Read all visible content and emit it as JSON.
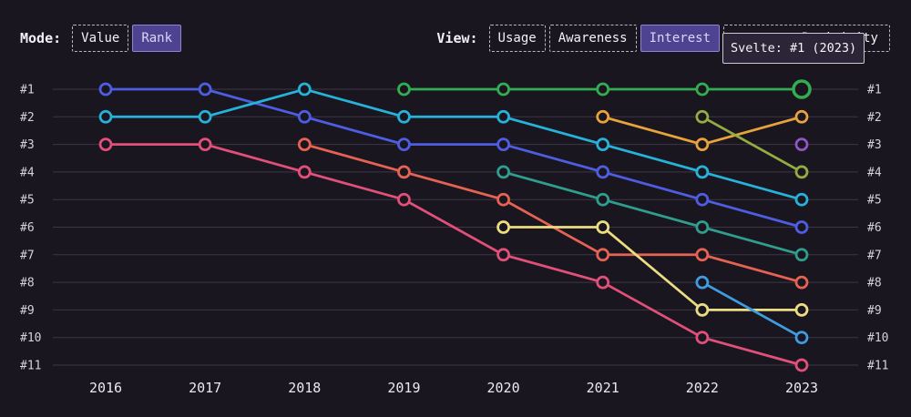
{
  "colors": {
    "background": "#1a1620",
    "grid": "#3d3745",
    "text": "#f3f0f7",
    "muted": "#d6d0de",
    "selected_bg": "#4d4390"
  },
  "toolbar": {
    "mode_label": "Mode:",
    "mode_options": [
      {
        "label": "Value",
        "selected": false
      },
      {
        "label": "Rank",
        "selected": true
      }
    ],
    "view_label": "View:",
    "view_options": [
      {
        "label": "Usage",
        "selected": false
      },
      {
        "label": "Awareness",
        "selected": false
      },
      {
        "label": "Interest",
        "selected": true
      },
      {
        "label": "Positivity",
        "selected": false,
        "partially_hidden_by_tooltip": true
      }
    ]
  },
  "tooltip": {
    "text": "Svelte: #1 (2023)"
  },
  "chart_data": {
    "type": "line",
    "variant": "bump-chart",
    "grid": "horizontal",
    "legend": "none",
    "x_labels": [
      "2016",
      "2017",
      "2018",
      "2019",
      "2020",
      "2021",
      "2022",
      "2023"
    ],
    "rank_labels": [
      "#1",
      "#2",
      "#3",
      "#4",
      "#5",
      "#6",
      "#7",
      "#8",
      "#9",
      "#10",
      "#11"
    ],
    "y_axis": "rank (1 = best, shown on both sides)",
    "series": [
      {
        "name": "indigo",
        "color": "#4e5de1",
        "ranks": [
          1,
          1,
          2,
          3,
          3,
          4,
          5,
          6
        ]
      },
      {
        "name": "cyan",
        "color": "#27b2da",
        "ranks": [
          2,
          2,
          1,
          2,
          2,
          3,
          4,
          5
        ]
      },
      {
        "name": "pink",
        "color": "#e2507a",
        "ranks": [
          3,
          3,
          4,
          5,
          7,
          8,
          10,
          11
        ]
      },
      {
        "name": "salmon",
        "color": "#e66353",
        "ranks": [
          null,
          null,
          3,
          4,
          5,
          7,
          7,
          8
        ]
      },
      {
        "name": "teal",
        "color": "#2f9e8f",
        "ranks": [
          null,
          null,
          null,
          null,
          4,
          5,
          6,
          7
        ]
      },
      {
        "name": "yellow",
        "color": "#ecdd83",
        "ranks": [
          null,
          null,
          null,
          null,
          6,
          6,
          9,
          9
        ]
      },
      {
        "name": "orange",
        "color": "#e8a33c",
        "ranks": [
          null,
          null,
          null,
          null,
          null,
          2,
          3,
          2
        ]
      },
      {
        "name": "sky",
        "color": "#3f9ce0",
        "ranks": [
          null,
          null,
          null,
          null,
          null,
          null,
          8,
          10
        ]
      },
      {
        "name": "olive",
        "color": "#93ad41",
        "ranks": [
          null,
          null,
          null,
          null,
          null,
          null,
          2,
          4
        ]
      },
      {
        "name": "purple",
        "color": "#9055c6",
        "ranks": [
          null,
          null,
          null,
          null,
          null,
          null,
          null,
          3
        ]
      },
      {
        "name": "Svelte",
        "color": "#33ad52",
        "ranks": [
          null,
          null,
          null,
          1,
          1,
          1,
          1,
          1
        ],
        "highlight_year": "2023"
      }
    ]
  }
}
